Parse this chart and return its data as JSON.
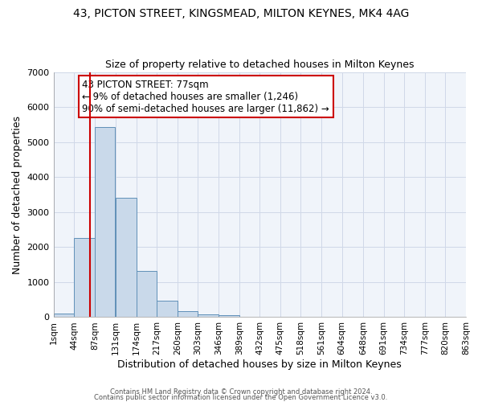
{
  "title1": "43, PICTON STREET, KINGSMEAD, MILTON KEYNES, MK4 4AG",
  "title2": "Size of property relative to detached houses in Milton Keynes",
  "xlabel": "Distribution of detached houses by size in Milton Keynes",
  "ylabel": "Number of detached properties",
  "bar_left_edges": [
    1,
    44,
    87,
    131,
    174,
    217,
    260,
    303,
    346,
    389,
    432,
    475,
    518,
    561,
    604,
    648,
    691,
    734,
    777,
    820
  ],
  "bar_heights": [
    100,
    2270,
    5430,
    3400,
    1330,
    470,
    175,
    90,
    55,
    10,
    0,
    0,
    0,
    0,
    0,
    0,
    0,
    0,
    0,
    0
  ],
  "bin_width": 43,
  "bar_color": "#c9d9ea",
  "bar_edge_color": "#6090b8",
  "x_tick_labels": [
    "1sqm",
    "44sqm",
    "87sqm",
    "131sqm",
    "174sqm",
    "217sqm",
    "260sqm",
    "303sqm",
    "346sqm",
    "389sqm",
    "432sqm",
    "475sqm",
    "518sqm",
    "561sqm",
    "604sqm",
    "648sqm",
    "691sqm",
    "734sqm",
    "777sqm",
    "820sqm",
    "863sqm"
  ],
  "x_tick_positions": [
    1,
    44,
    87,
    131,
    174,
    217,
    260,
    303,
    346,
    389,
    432,
    475,
    518,
    561,
    604,
    648,
    691,
    734,
    777,
    820,
    863
  ],
  "ylim": [
    0,
    7000
  ],
  "xlim_left": 1,
  "xlim_right": 863,
  "property_x": 77,
  "red_line_color": "#cc0000",
  "annotation_text": "43 PICTON STREET: 77sqm\n← 9% of detached houses are smaller (1,246)\n90% of semi-detached houses are larger (11,862) →",
  "annotation_box_color": "#cc0000",
  "annotation_text_color": "#000000",
  "grid_color": "#d0d8e8",
  "background_color": "#ffffff",
  "plot_bg_color": "#f0f4fa",
  "footer_line1": "Contains HM Land Registry data © Crown copyright and database right 2024.",
  "footer_line2": "Contains public sector information licensed under the Open Government Licence v3.0."
}
